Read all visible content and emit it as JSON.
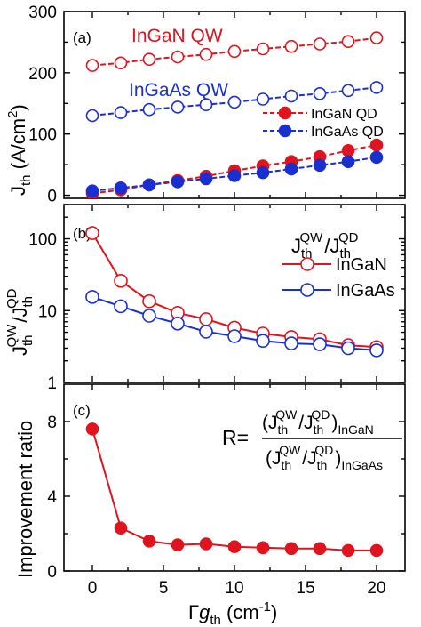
{
  "chart_data": [
    {
      "type": "line",
      "panel_label": "(a)",
      "ylabel_main": "J",
      "ylabel_sub": "th",
      "ylabel_unit": " (A/cm",
      "ylabel_sup": "2",
      "ylabel_close": ")",
      "xlim": [
        -2,
        22
      ],
      "ylim": [
        -5,
        300
      ],
      "yticks": [
        0,
        100,
        200,
        300
      ],
      "grid": false,
      "x": [
        0,
        2,
        4,
        6,
        8,
        10,
        12,
        14,
        16,
        18,
        20
      ],
      "series": [
        {
          "name": "InGaN QW",
          "color": "#e0141e",
          "marker": "open",
          "line": "dash",
          "values": [
            212,
            216,
            222,
            226,
            230,
            235,
            239,
            243,
            247,
            251,
            257
          ]
        },
        {
          "name": "InGaAs QW",
          "color": "#1a2fd0",
          "marker": "open",
          "line": "dash",
          "values": [
            130,
            135,
            140,
            144,
            148,
            152,
            157,
            162,
            166,
            171,
            176
          ]
        },
        {
          "name": "InGaN QD",
          "color": "#e0141e",
          "marker": "filled",
          "line": "dash",
          "values": [
            3,
            9,
            17,
            24,
            31,
            40,
            48,
            55,
            63,
            73,
            82
          ]
        },
        {
          "name": "InGaAs QD",
          "color": "#1a2fd0",
          "marker": "filled",
          "line": "dash",
          "values": [
            7,
            12,
            17,
            22,
            27,
            32,
            37,
            43,
            49,
            55,
            62
          ]
        }
      ],
      "annotations": [
        "InGaN QW",
        "InGaAs QW"
      ],
      "legend": [
        "InGaN QD",
        "InGaAs QD"
      ],
      "legend_position": "right"
    },
    {
      "type": "line",
      "panel_label": "(b)",
      "yscale": "log",
      "ylim": [
        1,
        300
      ],
      "yticks": [
        1,
        10,
        100
      ],
      "ytick_labels": [
        "1",
        "10",
        "100"
      ],
      "xlim": [
        -2,
        22
      ],
      "grid": false,
      "x": [
        0,
        2,
        4,
        6,
        8,
        10,
        12,
        14,
        16,
        18,
        20
      ],
      "legend_title_num": "QW",
      "legend_title_den": "QD",
      "series": [
        {
          "name": "InGaN",
          "color": "#e0141e",
          "marker": "open",
          "line": "solid",
          "values": [
            120,
            26,
            13.5,
            9.3,
            7.6,
            5.8,
            4.8,
            4.3,
            4.0,
            3.3,
            3.1
          ]
        },
        {
          "name": "InGaAs",
          "color": "#1a2fd0",
          "marker": "open",
          "line": "solid",
          "values": [
            15.5,
            11.5,
            8.5,
            6.6,
            5.1,
            4.4,
            3.8,
            3.5,
            3.4,
            3.0,
            2.8
          ]
        }
      ],
      "legend_position": "right"
    },
    {
      "type": "line",
      "panel_label": "(c)",
      "ylabel": "Improvement ratio",
      "xlabel_prefix": "Γ",
      "xlabel_var": "g",
      "xlabel_sub": "th",
      "xlabel_unit": " (cm",
      "xlabel_sup": "-1",
      "xlabel_close": ")",
      "xlim": [
        -2,
        22
      ],
      "ylim": [
        0,
        10
      ],
      "yticks": [
        0,
        4,
        8
      ],
      "xticks": [
        0,
        5,
        10,
        15,
        20
      ],
      "grid": false,
      "x": [
        0,
        2,
        4,
        6,
        8,
        10,
        12,
        14,
        16,
        18,
        20
      ],
      "series": [
        {
          "name": "",
          "color": "#e0141e",
          "marker": "filled",
          "line": "solid",
          "values": [
            7.6,
            2.3,
            1.6,
            1.4,
            1.45,
            1.3,
            1.25,
            1.2,
            1.2,
            1.1,
            1.1
          ]
        }
      ],
      "formula": {
        "lhs": "R=",
        "num_sub": "InGaN",
        "den_sub": "InGaAs",
        "sup_qw": "QW",
        "sup_qd": "QD",
        "sub_th": "th"
      }
    }
  ]
}
